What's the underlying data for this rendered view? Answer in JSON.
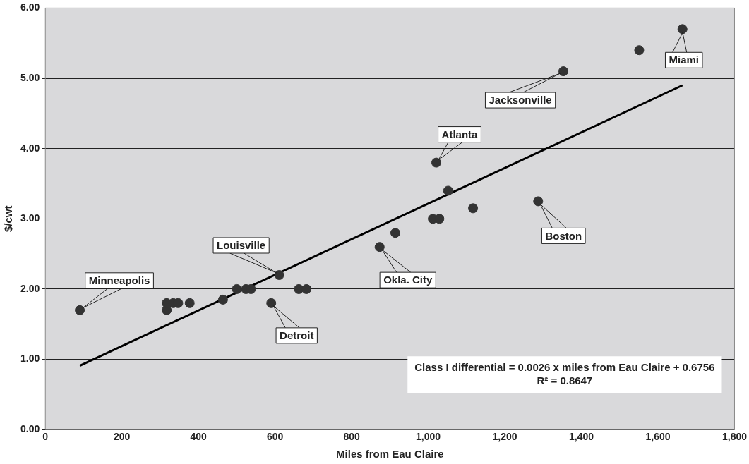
{
  "chart_data": {
    "type": "scatter",
    "xlabel": "Miles from Eau Claire",
    "ylabel": "$/cwt",
    "xlim": [
      0,
      1800
    ],
    "xticks": [
      0,
      {
        "value": 200,
        "label": "200"
      },
      {
        "value": 400,
        "label": "400"
      },
      {
        "value": 600,
        "label": "600"
      },
      {
        "value": 800,
        "label": "800"
      },
      {
        "value": 1000,
        "label": "1,000"
      },
      {
        "value": 1200,
        "label": "1,200"
      },
      {
        "value": 1400,
        "label": "1,400"
      },
      {
        "value": 1600,
        "label": "1,600"
      },
      {
        "value": 1800,
        "label": "1,800"
      }
    ],
    "ylim": [
      0,
      6
    ],
    "yticks": [
      {
        "value": 0,
        "label": "0.00"
      },
      {
        "value": 1,
        "label": "1.00"
      },
      {
        "value": 2,
        "label": "2.00"
      },
      {
        "value": 3,
        "label": "3.00"
      },
      {
        "value": 4,
        "label": "4.00"
      },
      {
        "value": 5,
        "label": "5.00"
      },
      {
        "value": 6,
        "label": "6.00"
      }
    ],
    "grid": "y",
    "legend": false,
    "series": [
      {
        "type": "scatter",
        "color": "#333333",
        "marker": "circle",
        "x": [
          90,
          317,
          317,
          334,
          347,
          377,
          464,
          500,
          524,
          537,
          590,
          611,
          662,
          682,
          873,
          914,
          1012,
          1029,
          1021,
          1052,
          1117,
          1287,
          1353,
          1551,
          1664
        ],
        "values": [
          1.7,
          1.7,
          1.8,
          1.8,
          1.8,
          1.8,
          1.85,
          2.0,
          2.0,
          2.0,
          1.8,
          2.2,
          2.0,
          2.0,
          2.6,
          2.8,
          3.0,
          3.0,
          3.8,
          3.4,
          3.15,
          3.25,
          5.1,
          5.4,
          5.7
        ]
      },
      {
        "type": "line",
        "color": "#000000",
        "marker": "none",
        "x": [
          90,
          1664
        ],
        "values": [
          0.91,
          4.9
        ]
      }
    ],
    "annotations": [
      {
        "text": "Minneapolis",
        "x": 90,
        "y": 1.7
      },
      {
        "text": "Louisville",
        "x": 611,
        "y": 2.2
      },
      {
        "text": "Detroit",
        "x": 590,
        "y": 1.8
      },
      {
        "text": "Okla. City",
        "x": 873,
        "y": 2.6
      },
      {
        "text": "Atlanta",
        "x": 1021,
        "y": 3.8
      },
      {
        "text": "Jacksonville",
        "x": 1353,
        "y": 5.1
      },
      {
        "text": "Boston",
        "x": 1287,
        "y": 3.25
      },
      {
        "text": "Miami",
        "x": 1664,
        "y": 5.7
      },
      "Class I differential = 0.0026 x miles from Eau Claire + 0.6756",
      "R² = 0.8647"
    ]
  }
}
